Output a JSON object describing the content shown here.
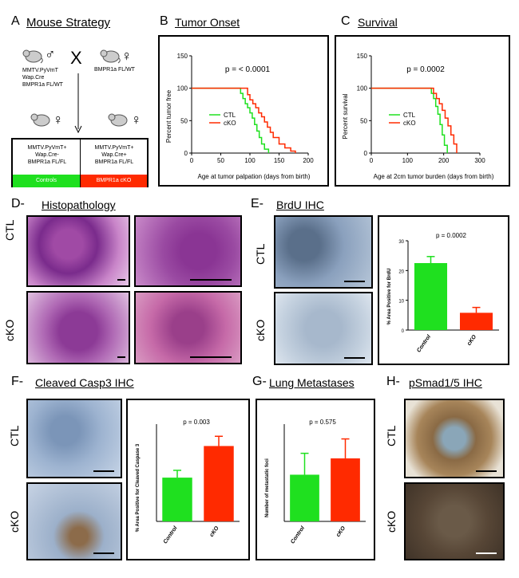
{
  "panelA": {
    "letter": "A",
    "title": "Mouse Strategy",
    "cross": "X",
    "male_symbol": "♂",
    "female_symbol": "♀",
    "parent1": [
      "MMTV.PyVmT",
      "Wap.Cre",
      "BMPR1a FL/WT"
    ],
    "parent2": "BMPR1a FL/WT",
    "offspring1": [
      "MMTV.PyVmT+",
      "Wap.Cre-",
      "BMPR1a FL/FL"
    ],
    "offspring2": [
      "MMTV.PyVmT+",
      "Wap.Cre+",
      "BMPR1a FL/FL"
    ],
    "controls_label": "Controls",
    "cko_label": "BMPR1a cKO",
    "green": "#1fe01f",
    "red": "#ff2a00"
  },
  "panelB": {
    "letter": "B",
    "title": "Tumor Onset",
    "pvalue": "p = < 0.0001",
    "ylabel": "Percent tumor free",
    "xlabel": "Age at tumor palpation (days from birth)",
    "legend": [
      "CTL",
      "cKO"
    ]
  },
  "panelC": {
    "letter": "C",
    "title": "Survival",
    "pvalue": "p = 0.0002",
    "ylabel": "Percent survival",
    "xlabel": "Age at 2cm tumor burden (days from birth)",
    "legend": [
      "CTL",
      "cKO"
    ]
  },
  "panelD": {
    "letter": "D-",
    "title": "Histopathology",
    "row1": "CTL",
    "row2": "cKO"
  },
  "panelE": {
    "letter": "E-",
    "title": "BrdU IHC",
    "row1": "CTL",
    "row2": "cKO",
    "pvalue": "p = 0.0002",
    "ylabel": "% Area Positive for BrdU"
  },
  "panelF": {
    "letter": "F-",
    "title": "Cleaved Casp3 IHC",
    "row1": "CTL",
    "row2": "cKO",
    "pvalue": "p = 0.003",
    "ylabel": "% Area Positive for Cleaved Caspase 3"
  },
  "panelG": {
    "letter": "G-",
    "title": "Lung Metastases",
    "pvalue": "p = 0.575",
    "ylabel": "Number of metastatic foci"
  },
  "panelH": {
    "letter": "H-",
    "title": "pSmad1/5 IHC",
    "row1": "CTL",
    "row2": "cKO"
  },
  "chart_data": [
    {
      "type": "line",
      "step": true,
      "title": "Tumor Onset",
      "xlabel": "Age at tumor palpation (days from birth)",
      "ylabel": "Percent tumor free",
      "xlim": [
        0,
        200
      ],
      "ylim": [
        0,
        150
      ],
      "xticks": [
        0,
        50,
        100,
        150,
        200
      ],
      "yticks": [
        0,
        50,
        100,
        150
      ],
      "series": [
        {
          "name": "CTL",
          "color": "#1fe01f",
          "x": [
            0,
            80,
            84,
            88,
            92,
            96,
            100,
            104,
            108,
            112,
            116,
            120,
            125,
            132
          ],
          "y": [
            100,
            100,
            92,
            84,
            76,
            70,
            62,
            54,
            44,
            34,
            24,
            14,
            6,
            0
          ]
        },
        {
          "name": "cKO",
          "color": "#ff2a00",
          "x": [
            0,
            90,
            96,
            100,
            105,
            110,
            115,
            120,
            125,
            130,
            135,
            140,
            150,
            160,
            170,
            178
          ],
          "y": [
            100,
            100,
            90,
            82,
            76,
            70,
            62,
            56,
            48,
            40,
            32,
            24,
            14,
            8,
            3,
            0
          ]
        }
      ]
    },
    {
      "type": "line",
      "step": true,
      "title": "Survival",
      "xlabel": "Age at 2cm tumor burden (days from birth)",
      "ylabel": "Percent survival",
      "xlim": [
        0,
        300
      ],
      "ylim": [
        0,
        150
      ],
      "xticks": [
        0,
        100,
        200,
        300
      ],
      "yticks": [
        0,
        50,
        100,
        150
      ],
      "series": [
        {
          "name": "CTL",
          "color": "#1fe01f",
          "x": [
            0,
            160,
            166,
            172,
            178,
            184,
            190,
            196,
            202,
            210
          ],
          "y": [
            100,
            100,
            92,
            84,
            72,
            60,
            44,
            28,
            12,
            0
          ]
        },
        {
          "name": "cKO",
          "color": "#ff2a00",
          "x": [
            0,
            165,
            172,
            180,
            188,
            196,
            204,
            212,
            220,
            228,
            236
          ],
          "y": [
            100,
            100,
            92,
            84,
            76,
            66,
            54,
            42,
            28,
            14,
            0
          ]
        }
      ]
    },
    {
      "type": "bar",
      "title": "BrdU IHC",
      "ylabel": "% Area Positive for BrdU",
      "categories": [
        "Control",
        "cKO"
      ],
      "values": [
        22.5,
        5.8
      ],
      "errors": [
        2.2,
        1.8
      ],
      "ylim": [
        0,
        30
      ],
      "yticks": [
        0,
        10,
        20,
        30
      ],
      "colors": [
        "#1fe01f",
        "#ff2a00"
      ]
    },
    {
      "type": "bar",
      "title": "Cleaved Casp3 IHC",
      "ylabel": "% Area Positive for Cleaved Caspase 3",
      "categories": [
        "Control",
        "cKO"
      ],
      "values": [
        3.6,
        6.2
      ],
      "errors": [
        0.6,
        0.8
      ],
      "ylim": [
        0,
        8
      ],
      "colors": [
        "#1fe01f",
        "#ff2a00"
      ]
    },
    {
      "type": "bar",
      "title": "Lung Metastases",
      "ylabel": "Number of metastatic foci",
      "categories": [
        "Control",
        "cKO"
      ],
      "values": [
        12,
        16.2
      ],
      "errors": [
        5.5,
        5.0
      ],
      "ylim": [
        0,
        25
      ],
      "colors": [
        "#1fe01f",
        "#ff2a00"
      ]
    }
  ]
}
